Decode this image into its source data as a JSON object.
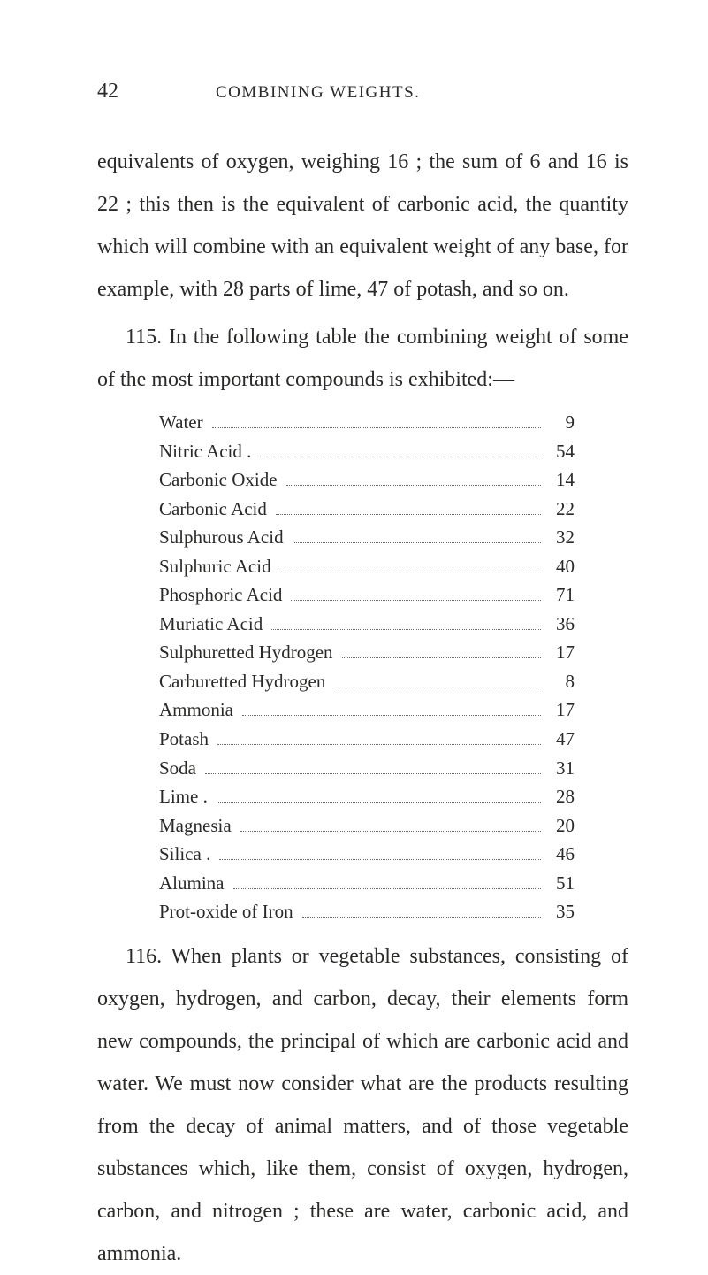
{
  "page_number": "42",
  "header": "COMBINING WEIGHTS.",
  "para1": "equivalents of oxygen, weighing 16 ; the sum of 6 and 16 is 22 ; this then is the equivalent of carbonic acid, the quantity which will combine with an equivalent weight of any base, for example, with 28 parts of lime, 47 of potash, and so on.",
  "para2": "115. In the following table the combining weight of some of the most important compounds is exhibited:—",
  "table": [
    {
      "name": "Water",
      "value": "9"
    },
    {
      "name": "Nitric Acid .",
      "value": "54"
    },
    {
      "name": "Carbonic Oxide",
      "value": "14"
    },
    {
      "name": "Carbonic Acid",
      "value": "22"
    },
    {
      "name": "Sulphurous Acid",
      "value": "32"
    },
    {
      "name": "Sulphuric Acid",
      "value": "40"
    },
    {
      "name": "Phosphoric Acid",
      "value": "71"
    },
    {
      "name": "Muriatic Acid",
      "value": "36"
    },
    {
      "name": "Sulphuretted Hydrogen",
      "value": "17"
    },
    {
      "name": "Carburetted Hydrogen",
      "value": "8"
    },
    {
      "name": "Ammonia",
      "value": "17"
    },
    {
      "name": "Potash",
      "value": "47"
    },
    {
      "name": "Soda",
      "value": "31"
    },
    {
      "name": "Lime .",
      "value": "28"
    },
    {
      "name": "Magnesia",
      "value": "20"
    },
    {
      "name": "Silica .",
      "value": "46"
    },
    {
      "name": "Alumina",
      "value": "51"
    },
    {
      "name": "Prot-oxide of Iron",
      "value": "35"
    }
  ],
  "para3": "116. When plants or vegetable substances, consisting of oxygen, hydrogen, and carbon, decay, their elements form new compounds, the principal of which are carbonic acid and water. We must now consider what are the products resulting from the decay of animal matters, and of those vegetable substances which, like them, consist of oxygen, hydrogen, carbon, and nitrogen ; these are water, carbonic acid, and ammonia."
}
